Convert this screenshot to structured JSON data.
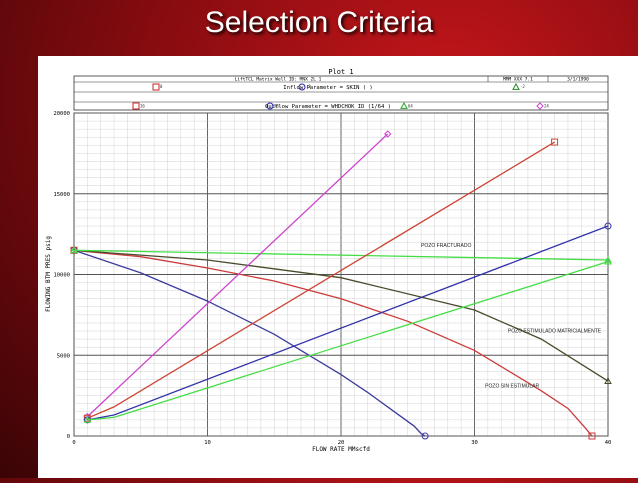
{
  "slide": {
    "title": "Selection Criteria"
  },
  "header": {
    "plot_title": "Plot 1",
    "info_left": "LiftTCL Matrix Well ID: MNX 2L 1",
    "info_mid": "MMM XXX 7.1",
    "info_right": "3/1/1990",
    "inflow_label": "Inflow Parameter = SKIN (          )",
    "outflow_label": "Outflow Parameter = WHDCHOK ID (1/64        )",
    "inflow_markers": [
      {
        "shape": "square",
        "label": "0",
        "color": "#cc2222"
      },
      {
        "shape": "circle",
        "label": "-2",
        "color": "#2222aa"
      },
      {
        "shape": "triangle",
        "label": "-2",
        "color": "#228822"
      }
    ],
    "outflow_markers": [
      {
        "shape": "square",
        "label": "16",
        "color": "#cc2222"
      },
      {
        "shape": "circle",
        "label": "96",
        "color": "#2222aa"
      },
      {
        "shape": "triangle",
        "label": "64",
        "color": "#22aa22"
      },
      {
        "shape": "diamond",
        "label": "24",
        "color": "#cc44cc"
      }
    ]
  },
  "chart_data": {
    "type": "line",
    "xlabel": "FLOW RATE MMscfd",
    "ylabel": "FLOWING BTM PRES psig",
    "xlim": [
      0,
      40
    ],
    "ylim": [
      0,
      20000
    ],
    "xticks": [
      0,
      10,
      20,
      30,
      40
    ],
    "yticks": [
      0,
      5000,
      10000,
      15000,
      20000
    ],
    "grid": true,
    "curve_labels": [
      {
        "text": "POZO FRACTURADO",
        "x": 26,
        "y": 11700
      },
      {
        "text": "POZO ESTIMULADO MATRICIALMENTE",
        "x": 32.5,
        "y": 6400
      },
      {
        "text": "POZO SIN ESTIMULAR",
        "x": 30.8,
        "y": 3000
      }
    ],
    "series": [
      {
        "color": "#3b3b9e",
        "marker": "circle",
        "x": [
          0,
          5,
          10,
          15,
          20,
          22,
          24,
          25.5,
          26,
          26.3
        ],
        "y": [
          11500,
          10100,
          8350,
          6300,
          3800,
          2700,
          1500,
          600,
          150,
          0
        ]
      },
      {
        "color": "#cc3a3a",
        "marker": "square",
        "x": [
          0,
          5,
          10,
          15,
          20,
          25,
          30,
          35,
          37,
          38.3,
          38.8
        ],
        "y": [
          11500,
          11100,
          10400,
          9600,
          8500,
          7100,
          5300,
          2800,
          1700,
          500,
          0
        ]
      },
      {
        "color": "#4a4a2a",
        "marker": "triangle",
        "x": [
          0,
          10,
          20,
          30,
          35,
          40
        ],
        "y": [
          11500,
          10900,
          9800,
          7800,
          6000,
          3400
        ]
      },
      {
        "color": "#44dd44",
        "marker": "triangle",
        "x": [
          0,
          40
        ],
        "y": [
          11500,
          10900
        ]
      },
      {
        "color": "#cc44cc",
        "marker": "diamond",
        "x": [
          1,
          23.5
        ],
        "y": [
          1200,
          18700
        ]
      },
      {
        "color": "#cc4433",
        "marker": "square",
        "x": [
          1,
          3,
          36
        ],
        "y": [
          1100,
          1800,
          18200
        ]
      },
      {
        "color": "#3333aa",
        "marker": "circle",
        "x": [
          1,
          3,
          40
        ],
        "y": [
          1000,
          1300,
          13000
        ]
      },
      {
        "color": "#44dd44",
        "marker": "triangle",
        "x": [
          1,
          3,
          40
        ],
        "y": [
          1000,
          1150,
          10800
        ]
      }
    ]
  }
}
